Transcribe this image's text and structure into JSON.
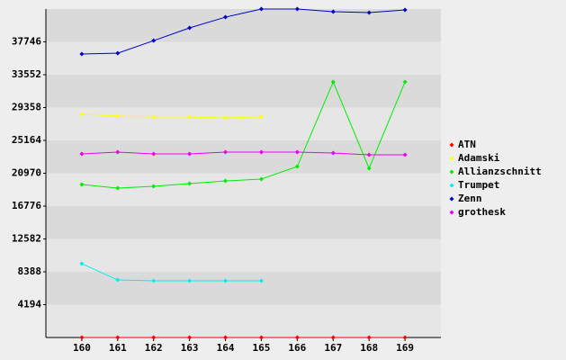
{
  "chart_data": {
    "type": "line",
    "x": [
      160,
      161,
      162,
      163,
      164,
      165,
      166,
      167,
      168,
      169
    ],
    "xlim": [
      159,
      170
    ],
    "xticks": [
      160,
      161,
      162,
      163,
      164,
      165,
      166,
      167,
      168,
      169
    ],
    "ylim": [
      0,
      41940
    ],
    "yticks": [
      4194,
      8388,
      12582,
      16776,
      20970,
      25164,
      29358,
      33552,
      37746
    ],
    "grid": true,
    "legend": "right",
    "series": [
      {
        "name": "ATN",
        "color": "#ff0000",
        "values": [
          0,
          0,
          0,
          0,
          0,
          0,
          0,
          0,
          0,
          0
        ]
      },
      {
        "name": "Adamski",
        "color": "#ffff00",
        "values": [
          28500,
          28270,
          28150,
          28150,
          28040,
          28150,
          null,
          null,
          null,
          null
        ]
      },
      {
        "name": "Allianzschnitt",
        "color": "#00ee00",
        "values": [
          19530,
          19070,
          19300,
          19650,
          19990,
          20220,
          21830,
          32630,
          21600,
          32630
        ]
      },
      {
        "name": "Trumpet",
        "color": "#00eeee",
        "values": [
          9420,
          7350,
          7240,
          7240,
          7240,
          7240,
          null,
          null,
          null,
          null
        ]
      },
      {
        "name": "Zenn",
        "color": "#0000cc",
        "values": [
          36190,
          36300,
          37900,
          39530,
          40900,
          41940,
          41940,
          41600,
          41480,
          41820
        ]
      },
      {
        "name": "grothesk",
        "color": "#ee00ee",
        "values": [
          23440,
          23670,
          23440,
          23440,
          23670,
          23670,
          23670,
          23550,
          23320,
          23320
        ]
      }
    ]
  }
}
